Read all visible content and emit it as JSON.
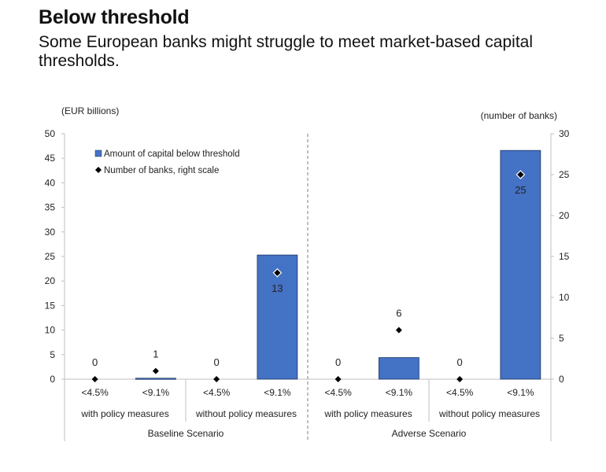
{
  "header": {
    "title": "Below threshold",
    "subtitle": "Some European banks might struggle to meet market-based capital thresholds."
  },
  "chart_data": {
    "type": "bar",
    "left_axis_label": "(EUR billions)",
    "right_axis_label": "(number of banks)",
    "ylim_left": [
      0,
      50
    ],
    "ylim_right": [
      0,
      30
    ],
    "left_ticks": [
      "0",
      "5",
      "10",
      "15",
      "20",
      "25",
      "30",
      "35",
      "40",
      "45",
      "50"
    ],
    "right_ticks": [
      "0",
      "5",
      "10",
      "15",
      "20",
      "25",
      "30"
    ],
    "categories": [
      "<4.5%",
      "<9.1%",
      "<4.5%",
      "<9.1%",
      "<4.5%",
      "<9.1%",
      "<4.5%",
      "<9.1%"
    ],
    "subgroups": [
      {
        "label": "with policy measures"
      },
      {
        "label": "without policy measures"
      },
      {
        "label": "with policy measures"
      },
      {
        "label": "without policy measures"
      }
    ],
    "groups": [
      {
        "label": "Baseline Scenario"
      },
      {
        "label": "Adverse Scenario"
      }
    ],
    "series": [
      {
        "name": "Amount of capital below threshold",
        "axis": "left",
        "kind": "bar",
        "color": "#4472C4",
        "values": [
          0,
          0.2,
          0,
          25.3,
          0,
          4.4,
          0,
          46.6
        ]
      },
      {
        "name": "Number of banks, right scale",
        "axis": "right",
        "kind": "marker",
        "color": "#000000",
        "values": [
          0,
          1,
          0,
          13,
          0,
          6,
          0,
          25
        ],
        "labels": [
          "0",
          "1",
          "0",
          "13",
          "0",
          "6",
          "0",
          "25"
        ]
      }
    ],
    "legend_position": "top-left",
    "grid": false
  }
}
